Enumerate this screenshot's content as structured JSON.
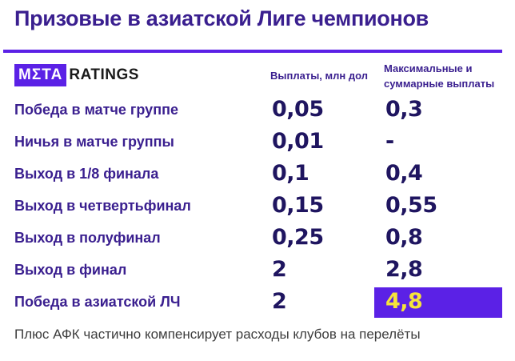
{
  "title": "Призовые в азиатской Лиге чемпионов",
  "logo": {
    "left": "МΣТА",
    "right": "RATINGS"
  },
  "columns": {
    "payout": "Выплаты, млн дол",
    "max_total": "Максимальные и суммарные выплаты"
  },
  "rows": [
    {
      "label": "Победа в матче группе",
      "payout": "0,05",
      "total": "0,3"
    },
    {
      "label": "Ничья в матче группы",
      "payout": "0,01",
      "total": "-"
    },
    {
      "label": "Выход в 1/8 финала",
      "payout": "0,1",
      "total": "0,4"
    },
    {
      "label": "Выход в четвертьфинал",
      "payout": "0,15",
      "total": "0,55"
    },
    {
      "label": "Выход в полуфинал",
      "payout": "0,25",
      "total": "0,8"
    },
    {
      "label": "Выход в финал",
      "payout": "2",
      "total": "2,8"
    },
    {
      "label": "Победа в азиатской ЛЧ",
      "payout": "2",
      "total": "4,8"
    }
  ],
  "footer": "Плюс АФК частично компенсирует расходы клубов на перелёты",
  "colors": {
    "accent": "#5b21e6",
    "text": "#3a1f8f",
    "value": "#1f1560",
    "highlight_text": "#f6e43a"
  }
}
